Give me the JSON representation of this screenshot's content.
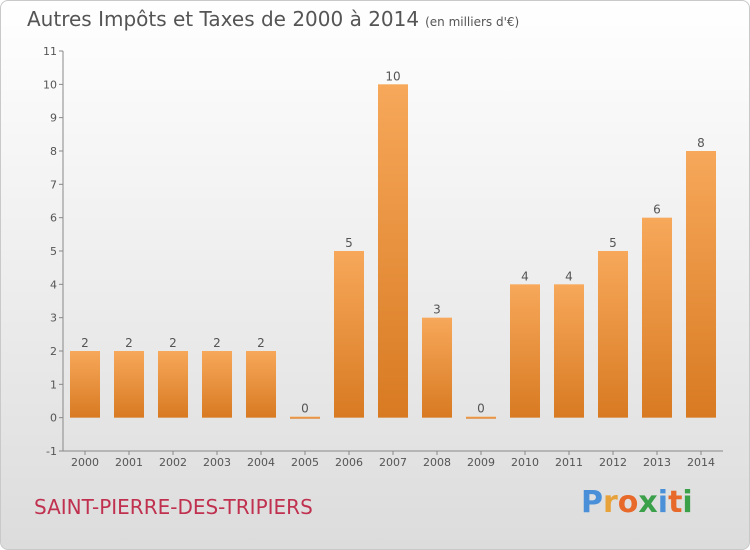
{
  "title": "Autres Impôts et Taxes de 2000 à 2014",
  "subtitle": "(en milliers d'€)",
  "commune": "SAINT-PIERRE-DES-TRIPIERS",
  "logo": {
    "letters": [
      "P",
      "r",
      "o",
      "x",
      "i",
      "t",
      "i"
    ],
    "colors": [
      "#4a90d9",
      "#e8a23a",
      "#e86a2a",
      "#3aa04a",
      "#4a90d9",
      "#e86a2a",
      "#3aa04a"
    ]
  },
  "colors": {
    "bar_top": "#f7a85a",
    "bar_bottom": "#d87a22",
    "text": "#555555",
    "axis": "#888888"
  },
  "chart_data": {
    "type": "bar",
    "title": "Autres Impôts et Taxes de 2000 à 2014",
    "subtitle": "(en milliers d'€)",
    "categories": [
      "2000",
      "2001",
      "2002",
      "2003",
      "2004",
      "2005",
      "2006",
      "2007",
      "2008",
      "2009",
      "2010",
      "2011",
      "2012",
      "2013",
      "2014"
    ],
    "values": [
      2,
      2,
      2,
      2,
      2,
      0,
      5,
      10,
      3,
      0,
      4,
      4,
      5,
      6,
      8
    ],
    "value_labels": [
      "2",
      "2",
      "2",
      "2",
      "2",
      "0",
      "5",
      "10",
      "3",
      "0",
      "4",
      "4",
      "5",
      "6",
      "8"
    ],
    "y_ticks": [
      "-1",
      "0",
      "1",
      "2",
      "3",
      "4",
      "5",
      "6",
      "7",
      "8",
      "9",
      "10",
      "11"
    ],
    "ylim": [
      -1,
      11
    ],
    "grid": false,
    "legend": "none"
  }
}
